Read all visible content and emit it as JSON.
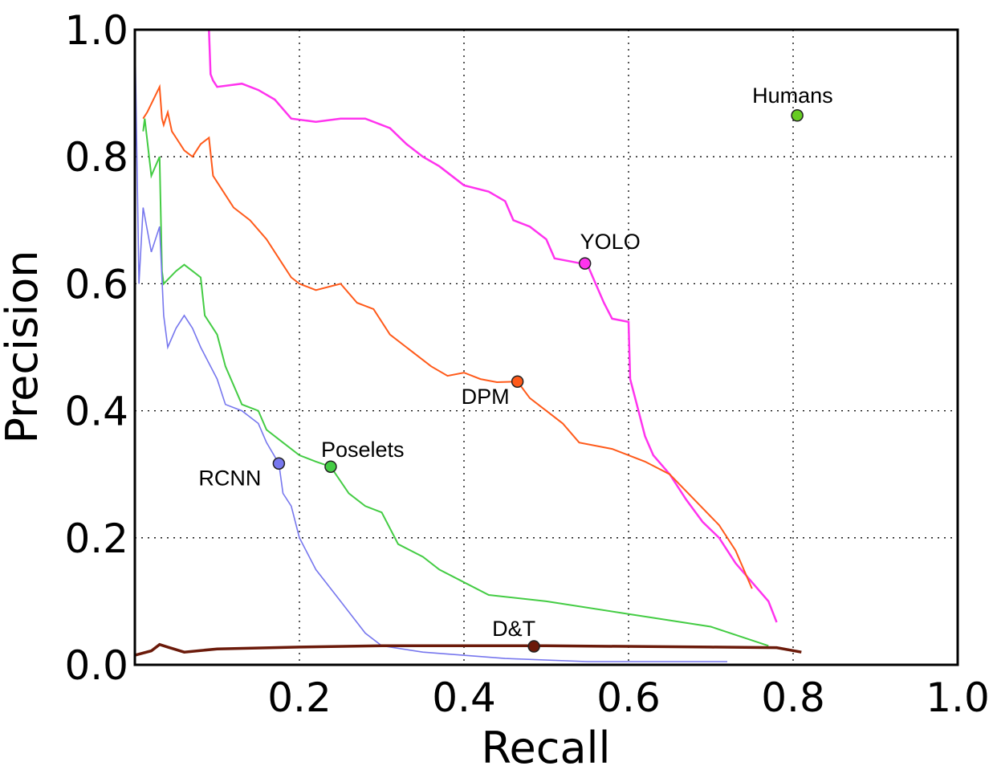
{
  "chart_data": {
    "type": "line",
    "title": "",
    "xlabel": "Recall",
    "ylabel": "Precision",
    "xlim": [
      0,
      1.0
    ],
    "ylim": [
      0,
      1.0
    ],
    "grid": true,
    "legend": "none (direct labels)",
    "xticks": [
      "0.2",
      "0.4",
      "0.6",
      "0.8",
      "1.0"
    ],
    "yticks": [
      "0.0",
      "0.2",
      "0.4",
      "0.6",
      "0.8",
      "1.0"
    ],
    "series": [
      {
        "name": "YOLO",
        "color": "#ff33ee",
        "width": 2.5,
        "marker": [
          0.547,
          0.632
        ],
        "x": [
          0.0,
          0.09,
          0.092,
          0.095,
          0.1,
          0.13,
          0.15,
          0.17,
          0.19,
          0.22,
          0.25,
          0.28,
          0.31,
          0.33,
          0.35,
          0.37,
          0.4,
          0.43,
          0.45,
          0.46,
          0.48,
          0.5,
          0.51,
          0.53,
          0.55,
          0.56,
          0.57,
          0.58,
          0.6,
          0.602,
          0.61,
          0.62,
          0.63,
          0.65,
          0.67,
          0.69,
          0.71,
          0.73,
          0.75,
          0.77,
          0.78
        ],
        "y": [
          1.0,
          1.0,
          0.93,
          0.92,
          0.91,
          0.915,
          0.905,
          0.89,
          0.86,
          0.855,
          0.86,
          0.86,
          0.845,
          0.82,
          0.8,
          0.785,
          0.755,
          0.745,
          0.73,
          0.7,
          0.69,
          0.67,
          0.64,
          0.635,
          0.63,
          0.6,
          0.57,
          0.545,
          0.54,
          0.45,
          0.41,
          0.36,
          0.33,
          0.3,
          0.26,
          0.225,
          0.2,
          0.16,
          0.13,
          0.1,
          0.067
        ]
      },
      {
        "name": "DPM",
        "color": "#ff5a1a",
        "width": 2,
        "marker": [
          0.465,
          0.446
        ],
        "x": [
          0.01,
          0.015,
          0.03,
          0.033,
          0.035,
          0.04,
          0.045,
          0.05,
          0.06,
          0.07,
          0.08,
          0.09,
          0.095,
          0.12,
          0.14,
          0.16,
          0.18,
          0.19,
          0.2,
          0.22,
          0.25,
          0.27,
          0.29,
          0.31,
          0.33,
          0.36,
          0.38,
          0.4,
          0.42,
          0.44,
          0.465,
          0.48,
          0.5,
          0.52,
          0.54,
          0.58,
          0.62,
          0.65,
          0.68,
          0.71,
          0.73,
          0.75
        ],
        "y": [
          0.86,
          0.87,
          0.91,
          0.86,
          0.85,
          0.87,
          0.84,
          0.83,
          0.81,
          0.8,
          0.82,
          0.83,
          0.77,
          0.72,
          0.7,
          0.67,
          0.63,
          0.61,
          0.6,
          0.59,
          0.6,
          0.57,
          0.56,
          0.52,
          0.5,
          0.47,
          0.455,
          0.46,
          0.45,
          0.445,
          0.446,
          0.42,
          0.4,
          0.38,
          0.35,
          0.34,
          0.32,
          0.3,
          0.26,
          0.22,
          0.18,
          0.12
        ]
      },
      {
        "name": "Poselets",
        "color": "#44cc44",
        "width": 2,
        "marker": [
          0.238,
          0.312
        ],
        "x": [
          0.01,
          0.012,
          0.02,
          0.03,
          0.033,
          0.035,
          0.05,
          0.06,
          0.07,
          0.08,
          0.085,
          0.1,
          0.11,
          0.13,
          0.15,
          0.16,
          0.18,
          0.2,
          0.22,
          0.238,
          0.26,
          0.28,
          0.3,
          0.32,
          0.35,
          0.37,
          0.4,
          0.43,
          0.5,
          0.6,
          0.7,
          0.77
        ],
        "y": [
          0.84,
          0.86,
          0.77,
          0.8,
          0.62,
          0.6,
          0.62,
          0.63,
          0.62,
          0.61,
          0.55,
          0.52,
          0.47,
          0.41,
          0.4,
          0.37,
          0.35,
          0.33,
          0.32,
          0.312,
          0.27,
          0.25,
          0.24,
          0.19,
          0.17,
          0.15,
          0.13,
          0.11,
          0.1,
          0.08,
          0.06,
          0.03
        ]
      },
      {
        "name": "RCNN",
        "color": "#7777ee",
        "width": 1.6,
        "marker": [
          0.175,
          0.317
        ],
        "x": [
          0.0,
          0.005,
          0.01,
          0.02,
          0.03,
          0.035,
          0.04,
          0.05,
          0.06,
          0.07,
          0.08,
          0.1,
          0.11,
          0.13,
          0.15,
          0.16,
          0.175,
          0.18,
          0.19,
          0.2,
          0.22,
          0.25,
          0.28,
          0.3,
          0.35,
          0.45,
          0.55,
          0.72
        ],
        "y": [
          1.0,
          0.6,
          0.72,
          0.65,
          0.69,
          0.55,
          0.5,
          0.53,
          0.55,
          0.53,
          0.5,
          0.45,
          0.41,
          0.4,
          0.38,
          0.35,
          0.317,
          0.27,
          0.25,
          0.2,
          0.15,
          0.1,
          0.05,
          0.03,
          0.02,
          0.01,
          0.005,
          0.005
        ]
      },
      {
        "name": "D&T",
        "color": "#6b1a0a",
        "width": 3.5,
        "marker": [
          0.485,
          0.029
        ],
        "x": [
          0.0,
          0.02,
          0.03,
          0.04,
          0.06,
          0.1,
          0.2,
          0.3,
          0.5,
          0.7,
          0.78,
          0.81
        ],
        "y": [
          0.015,
          0.022,
          0.032,
          0.028,
          0.02,
          0.025,
          0.028,
          0.03,
          0.03,
          0.028,
          0.027,
          0.02
        ]
      },
      {
        "name": "Humans",
        "color": "#66cc22",
        "width": 0,
        "marker": [
          0.805,
          0.865
        ],
        "x": [],
        "y": []
      }
    ]
  }
}
